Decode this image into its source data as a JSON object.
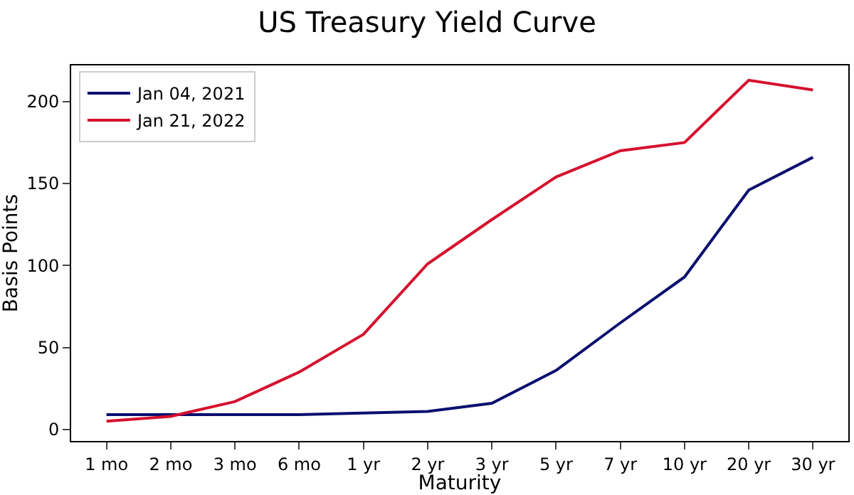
{
  "chart_data": {
    "type": "line",
    "title": "US Treasury Yield Curve",
    "xlabel": "Maturity",
    "ylabel": "Basis Points",
    "categories": [
      "1 mo",
      "2 mo",
      "3 mo",
      "6 mo",
      "1 yr",
      "2 yr",
      "3 yr",
      "5 yr",
      "7 yr",
      "10 yr",
      "20 yr",
      "30 yr"
    ],
    "series": [
      {
        "name": "Jan 04, 2021",
        "color": "#0a0f6e",
        "values": [
          9,
          9,
          9,
          9,
          10,
          11,
          16,
          36,
          65,
          93,
          146,
          166
        ]
      },
      {
        "name": "Jan 21, 2022",
        "color": "#d5112e",
        "values": [
          5,
          8,
          17,
          35,
          58,
          101,
          128,
          154,
          170,
          175,
          213,
          207
        ]
      }
    ],
    "ylim": [
      -7,
      222
    ],
    "yticks": [
      0,
      50,
      100,
      150,
      200
    ],
    "legend": "top left",
    "marker": "none",
    "line_style": "solid"
  }
}
